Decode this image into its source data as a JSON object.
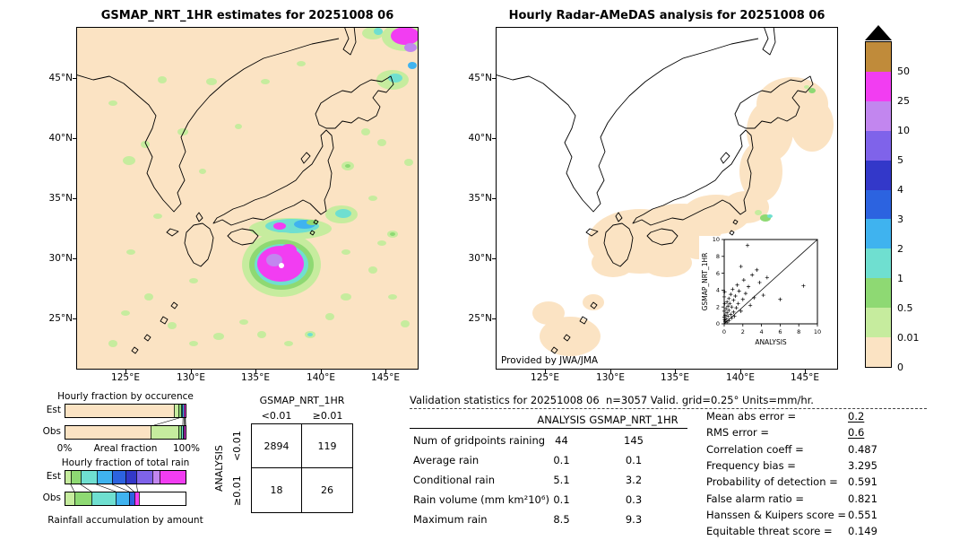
{
  "palette": {
    "peach": "#fbe3c3",
    "palegreen": "#c6ec9e",
    "green": "#8ed973",
    "turquoise": "#6fdfd0",
    "lightblue": "#3fb3ef",
    "blue": "#2c63e0",
    "indigo": "#3338c9",
    "purple": "#7f63ea",
    "orchid": "#c286ef",
    "magenta": "#f23df2",
    "tan": "#c08b3a",
    "white": "#ffffff"
  },
  "left_map": {
    "title": "GSMAP_NRT_1HR estimates for 20251008 06",
    "x_ticks": [
      "125°E",
      "130°E",
      "135°E",
      "140°E",
      "145°E"
    ],
    "y_ticks": [
      "45°N",
      "40°N",
      "35°N",
      "30°N",
      "25°N"
    ]
  },
  "right_map": {
    "title": "Hourly Radar-AMeDAS analysis for 20251008 06",
    "x_ticks": [
      "125°E",
      "130°E",
      "135°E",
      "140°E",
      "145°E"
    ],
    "y_ticks": [
      "45°N",
      "40°N",
      "35°N",
      "30°N",
      "25°N"
    ],
    "credit": "Provided by JWA/JMA",
    "inset": {
      "xlabel": "ANALYSIS",
      "ylabel": "GSMAP_NRT_1HR",
      "ticks": [
        0,
        2,
        4,
        6,
        8,
        10
      ]
    }
  },
  "colorbar": {
    "labels": [
      "50",
      "25",
      "10",
      "5",
      "4",
      "3",
      "2",
      "1",
      "0.5",
      "0.01",
      "0"
    ],
    "colors": [
      "#c08b3a",
      "#f23df2",
      "#c286ef",
      "#7f63ea",
      "#3338c9",
      "#2c63e0",
      "#3fb3ef",
      "#6fdfd0",
      "#8ed973",
      "#c6ec9e",
      "#fbe3c3"
    ]
  },
  "occurrence_chart": {
    "title": "Hourly fraction by occurence",
    "row_labels": [
      "Est",
      "Obs"
    ],
    "axis": {
      "left": "0%",
      "center": "Areal fraction",
      "right": "100%"
    },
    "est": [
      [
        "peach",
        94.0
      ],
      [
        "palegreen",
        3.2
      ],
      [
        "green",
        1.0
      ],
      [
        "turquoise",
        0.6
      ],
      [
        "lightblue",
        0.4
      ],
      [
        "magenta",
        0.8
      ]
    ],
    "obs": [
      [
        "peach",
        73.5
      ],
      [
        "palegreen",
        23.5
      ],
      [
        "green",
        1.2
      ],
      [
        "turquoise",
        0.7
      ],
      [
        "lightblue",
        0.5
      ],
      [
        "magenta",
        0.6
      ]
    ]
  },
  "totalrain_chart": {
    "title": "Hourly fraction of total rain",
    "row_labels": [
      "Est",
      "Obs"
    ],
    "caption": "Rainfall accumulation by amount",
    "est": [
      [
        "palegreen",
        5
      ],
      [
        "green",
        8
      ],
      [
        "turquoise",
        13
      ],
      [
        "lightblue",
        13
      ],
      [
        "blue",
        11
      ],
      [
        "indigo",
        9
      ],
      [
        "purple",
        13
      ],
      [
        "orchid",
        6
      ],
      [
        "magenta",
        22
      ]
    ],
    "obs": [
      [
        "palegreen",
        8
      ],
      [
        "green",
        14
      ],
      [
        "turquoise",
        20
      ],
      [
        "lightblue",
        11
      ],
      [
        "blue",
        4
      ],
      [
        "magenta",
        3
      ],
      [
        "white",
        40
      ]
    ]
  },
  "contingency": {
    "col_group": "GSMAP_NRT_1HR",
    "col_headers": [
      "<0.01",
      "≥0.01"
    ],
    "row_group": "ANALYSIS",
    "row_headers": [
      "<0.01",
      "≥0.01"
    ],
    "values": [
      [
        "2894",
        "119"
      ],
      [
        "18",
        "26"
      ]
    ]
  },
  "stats": {
    "title": "Validation statistics for 20251008 06  n=3057 Valid. grid=0.25° Units=mm/hr.",
    "col_headers": [
      "ANALYSIS",
      "GSMAP_NRT_1HR"
    ],
    "rows": [
      {
        "label": "Num of gridpoints raining",
        "analysis": "44",
        "gsmap": "145"
      },
      {
        "label": "Average rain",
        "analysis": "0.1",
        "gsmap": "0.1"
      },
      {
        "label": "Conditional rain",
        "analysis": "5.1",
        "gsmap": "3.2"
      },
      {
        "label": "Rain volume (mm km²10⁶)",
        "analysis": "0.1",
        "gsmap": "0.3"
      },
      {
        "label": "Maximum rain",
        "analysis": "8.5",
        "gsmap": "9.3"
      }
    ],
    "scores": [
      {
        "label": "Mean abs error =",
        "value": "0.2",
        "underline": true
      },
      {
        "label": "RMS error =",
        "value": "0.6",
        "underline": true
      },
      {
        "label": "Correlation coeff =",
        "value": "0.487"
      },
      {
        "label": "Frequency bias =",
        "value": "3.295"
      },
      {
        "label": "Probability of detection =",
        "value": "0.591"
      },
      {
        "label": "False alarm ratio =",
        "value": "0.821"
      },
      {
        "label": "Hanssen & Kuipers score =",
        "value": "0.551"
      },
      {
        "label": "Equitable threat score =",
        "value": "0.149"
      }
    ]
  },
  "chart_data": [
    {
      "type": "heatmap",
      "title": "GSMAP_NRT_1HR estimates for 20251008 06",
      "x_ticks": [
        "125°E",
        "130°E",
        "135°E",
        "140°E",
        "145°E"
      ],
      "y_ticks": [
        "45°N",
        "40°N",
        "35°N",
        "30°N",
        "25°N"
      ],
      "units": "mm/hr",
      "levels": [
        0,
        0.01,
        0.5,
        1,
        2,
        3,
        4,
        5,
        10,
        25,
        50
      ],
      "level_colors": [
        "#fbe3c3",
        "#c6ec9e",
        "#8ed973",
        "#6fdfd0",
        "#3fb3ef",
        "#2c63e0",
        "#3338c9",
        "#7f63ea",
        "#c286ef",
        "#f23df2",
        "#c08b3a"
      ]
    },
    {
      "type": "heatmap",
      "title": "Hourly Radar-AMeDAS analysis for 20251008 06",
      "x_ticks": [
        "125°E",
        "130°E",
        "135°E",
        "140°E",
        "145°E"
      ],
      "y_ticks": [
        "45°N",
        "40°N",
        "35°N",
        "30°N",
        "25°N"
      ],
      "units": "mm/hr",
      "levels": [
        0,
        0.01,
        0.5,
        1,
        2,
        3,
        4,
        5,
        10,
        25,
        50
      ]
    },
    {
      "type": "scatter",
      "title": "GSMAP_NRT_1HR vs ANALYSIS (inset)",
      "xlabel": "ANALYSIS",
      "ylabel": "GSMAP_NRT_1HR",
      "xlim": [
        0,
        10
      ],
      "ylim": [
        0,
        10
      ],
      "x_ticks": [
        0,
        2,
        4,
        6,
        8,
        10
      ],
      "y_ticks": [
        0,
        2,
        4,
        6,
        8,
        10
      ],
      "diagonal": true,
      "points": [
        [
          0,
          0.8
        ],
        [
          0,
          1.5
        ],
        [
          0,
          3.2
        ],
        [
          0.05,
          0.5
        ],
        [
          0.05,
          2.4
        ],
        [
          0.05,
          3.8
        ],
        [
          0.1,
          0.3
        ],
        [
          0.1,
          1.0
        ],
        [
          0.2,
          0.6
        ],
        [
          0.2,
          1.8
        ],
        [
          0.3,
          0.2
        ],
        [
          0.3,
          1.3
        ],
        [
          0.3,
          2.6
        ],
        [
          0.4,
          0.9
        ],
        [
          0.4,
          2.1
        ],
        [
          0.5,
          0.4
        ],
        [
          0.5,
          1.6
        ],
        [
          0.5,
          3.0
        ],
        [
          0.6,
          2.4
        ],
        [
          0.7,
          1.1
        ],
        [
          0.7,
          3.5
        ],
        [
          0.8,
          0.7
        ],
        [
          0.8,
          2.0
        ],
        [
          0.9,
          4.1
        ],
        [
          1.0,
          1.4
        ],
        [
          1.0,
          2.8
        ],
        [
          1.1,
          0.9
        ],
        [
          1.2,
          3.3
        ],
        [
          1.3,
          1.9
        ],
        [
          1.4,
          4.6
        ],
        [
          1.5,
          2.4
        ],
        [
          1.6,
          3.9
        ],
        [
          1.8,
          1.5
        ],
        [
          1.8,
          6.8
        ],
        [
          2.0,
          2.9
        ],
        [
          2.1,
          5.2
        ],
        [
          2.3,
          3.6
        ],
        [
          2.5,
          9.3
        ],
        [
          2.6,
          4.4
        ],
        [
          2.8,
          2.2
        ],
        [
          3.0,
          5.8
        ],
        [
          3.2,
          3.1
        ],
        [
          3.5,
          6.4
        ],
        [
          3.8,
          4.9
        ],
        [
          4.2,
          3.4
        ],
        [
          4.6,
          5.5
        ],
        [
          6.0,
          2.9
        ],
        [
          8.5,
          4.5
        ]
      ]
    },
    {
      "type": "bar",
      "subtype": "stacked-fraction",
      "title": "Hourly fraction by occurence",
      "categories": [
        "Est",
        "Obs"
      ],
      "xlabel": "Areal fraction",
      "xlim": [
        "0%",
        "100%"
      ],
      "series": [
        {
          "name": "Est",
          "segments": [
            [
              "0-0.01",
              94.0
            ],
            [
              "0.01-0.5",
              3.2
            ],
            [
              "0.5-1",
              1.0
            ],
            [
              "1-2",
              0.6
            ],
            [
              "2-3",
              0.4
            ],
            [
              "25-50",
              0.8
            ]
          ]
        },
        {
          "name": "Obs",
          "segments": [
            [
              "0-0.01",
              73.5
            ],
            [
              "0.01-0.5",
              23.5
            ],
            [
              "0.5-1",
              1.2
            ],
            [
              "1-2",
              0.7
            ],
            [
              "2-3",
              0.5
            ],
            [
              "25-50",
              0.6
            ]
          ]
        }
      ]
    },
    {
      "type": "bar",
      "subtype": "stacked-fraction",
      "title": "Hourly fraction of total rain",
      "categories": [
        "Est",
        "Obs"
      ],
      "xlabel": "Rainfall accumulation by amount",
      "series": [
        {
          "name": "Est",
          "segments": [
            [
              "0.01-0.5",
              5
            ],
            [
              "0.5-1",
              8
            ],
            [
              "1-2",
              13
            ],
            [
              "2-3",
              13
            ],
            [
              "3-4",
              11
            ],
            [
              "4-5",
              9
            ],
            [
              "5-10",
              13
            ],
            [
              "10-25",
              6
            ],
            [
              "25-50",
              22
            ]
          ]
        },
        {
          "name": "Obs",
          "segments": [
            [
              "0.01-0.5",
              8
            ],
            [
              "0.5-1",
              14
            ],
            [
              "1-2",
              20
            ],
            [
              "2-3",
              11
            ],
            [
              "3-4",
              4
            ],
            [
              "25-50",
              3
            ]
          ]
        }
      ]
    },
    {
      "type": "table",
      "title": "Contingency table (gridpoints)",
      "column_group": "GSMAP_NRT_1HR",
      "row_group": "ANALYSIS",
      "columns": [
        "<0.01",
        "≥0.01"
      ],
      "rows": [
        {
          "label": "<0.01",
          "values": [
            2894,
            119
          ]
        },
        {
          "label": "≥0.01",
          "values": [
            18,
            26
          ]
        }
      ]
    },
    {
      "type": "table",
      "title": "Validation statistics for 20251008 06",
      "n": 3057,
      "grid": "0.25°",
      "units": "mm/hr",
      "columns": [
        "ANALYSIS",
        "GSMAP_NRT_1HR"
      ],
      "rows": [
        [
          "Num of gridpoints raining",
          44,
          145
        ],
        [
          "Average rain",
          0.1,
          0.1
        ],
        [
          "Conditional rain",
          5.1,
          3.2
        ],
        [
          "Rain volume (mm km²10⁶)",
          0.1,
          0.3
        ],
        [
          "Maximum rain",
          8.5,
          9.3
        ]
      ],
      "scores": {
        "Mean abs error": 0.2,
        "RMS error": 0.6,
        "Correlation coeff": 0.487,
        "Frequency bias": 3.295,
        "Probability of detection": 0.591,
        "False alarm ratio": 0.821,
        "Hanssen & Kuipers score": 0.551,
        "Equitable threat score": 0.149
      }
    }
  ]
}
